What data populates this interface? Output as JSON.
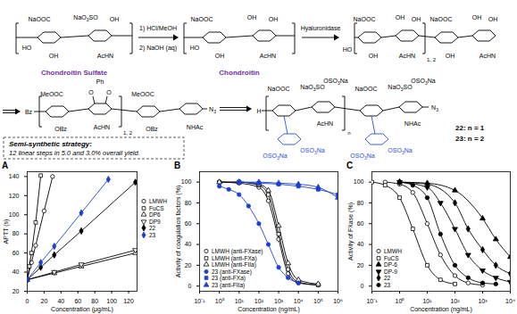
{
  "scheme": {
    "compounds": [
      {
        "name": "Chondroitin Sulfate",
        "color": "#7030a0",
        "labels": [
          "NaOOC",
          "NaO3SO",
          "OH",
          "HO",
          "OH",
          "AcHN"
        ]
      },
      {
        "name": "Chondroitin",
        "color": "#7030a0",
        "labels": [
          "NaOOC",
          "OH",
          "OH",
          "HO",
          "OH",
          "AcHN"
        ]
      },
      {
        "labels": [
          "NaOOC",
          "OH",
          "OH",
          "NaOOC",
          "OH",
          "OH",
          "HO",
          "OH",
          "AcHN",
          "1, 2",
          "OH",
          "AcHN"
        ]
      },
      {
        "labels": [
          "Ph",
          "O",
          "O",
          "MeOOC",
          "MeOOC",
          "Bz",
          "OBz",
          "AcHN",
          "1, 2",
          "OBz",
          "NHAc",
          "N3"
        ]
      },
      {
        "labels": [
          "NaOOC",
          "NaO3SO",
          "OSO3Na",
          "NaOOC",
          "NaO3SO",
          "OSO3Na",
          "H",
          "AcHN",
          "n",
          "NHAc",
          "N3",
          "OSO3Na",
          "OSO3Na",
          "OSO3Na",
          "OSO3Na"
        ],
        "names": [
          "22: n = 1",
          "23: n = 2"
        ]
      }
    ],
    "steps": [
      {
        "above": "1) HCl/MeOH",
        "below": "2) NaOH (aq)"
      },
      {
        "above": "Hyaluronidase"
      }
    ],
    "strategy": {
      "title": "Semi-synthetic strategy:",
      "text": "12 linear steps in 5.0 and 3.0% overall yield."
    }
  },
  "chart_data": [
    {
      "type": "line",
      "title": "A",
      "x_label": "Concentration (μg/mL)",
      "y_label": "APTT (s)",
      "xlim": [
        0,
        130
      ],
      "xticks": [
        0,
        20,
        40,
        60,
        80,
        100,
        120
      ],
      "ylim": [
        20,
        145
      ],
      "yticks": [
        20,
        40,
        60,
        80,
        100,
        120,
        140
      ],
      "legend": "right",
      "series": [
        {
          "name": "LMWH",
          "color": "#000000",
          "marker": "open-circle",
          "x": [
            0,
            5,
            10,
            20,
            30
          ],
          "values": [
            32,
            50,
            68,
            104,
            140
          ]
        },
        {
          "name": "FuCS",
          "color": "#000000",
          "marker": "open-square",
          "x": [
            0,
            2.5,
            5,
            10,
            16
          ],
          "values": [
            32,
            46,
            60,
            92,
            141
          ]
        },
        {
          "name": "DP6",
          "color": "#000000",
          "marker": "open-triangle",
          "x": [
            0,
            32,
            64,
            128
          ],
          "values": [
            32,
            39,
            46,
            60
          ]
        },
        {
          "name": "DP9",
          "color": "#000000",
          "marker": "open-triangle-down",
          "x": [
            0,
            32,
            64,
            128
          ],
          "values": [
            32,
            40,
            48,
            63
          ]
        },
        {
          "name": "22",
          "color": "#000000",
          "marker": "filled-diamond",
          "x": [
            0,
            16,
            32,
            64,
            128
          ],
          "values": [
            32,
            45,
            58,
            83,
            134
          ]
        },
        {
          "name": "23",
          "color": "#1c3fd1",
          "marker": "filled-diamond",
          "x": [
            0,
            16,
            32,
            64,
            96
          ],
          "values": [
            32,
            50,
            67,
            102,
            137
          ]
        }
      ]
    },
    {
      "type": "line",
      "title": "B",
      "x_label": "Concentration (ng/mL)",
      "y_label": "Activity of coagulation factors (%)",
      "log": "x",
      "xlim": [
        0.1,
        1000000
      ],
      "xticks": [
        {
          "value": 0.1,
          "label": "10⁻¹"
        },
        {
          "value": 1,
          "label": "10⁰"
        },
        {
          "value": 10,
          "label": "10¹"
        },
        {
          "value": 100,
          "label": "10²"
        },
        {
          "value": 1000,
          "label": "10³"
        },
        {
          "value": 10000,
          "label": "10⁴"
        },
        {
          "value": 100000,
          "label": "10⁵"
        },
        {
          "value": 1000000,
          "label": "10⁶"
        }
      ],
      "ylim": [
        -5,
        110
      ],
      "yticks": [
        0,
        20,
        40,
        60,
        80,
        100
      ],
      "legend": "bottom-left",
      "series": [
        {
          "name": "LMWH (anti-FXase)",
          "color": "#000000",
          "marker": "open-circle",
          "x": [
            1,
            10,
            100,
            300,
            1000,
            3000,
            10000,
            100000
          ],
          "values": [
            100,
            99,
            95,
            82,
            45,
            12,
            3,
            1
          ]
        },
        {
          "name": "LMWH (anti-FXa)",
          "color": "#000000",
          "marker": "open-square",
          "x": [
            1,
            10,
            100,
            300,
            1000,
            3000,
            10000,
            100000
          ],
          "values": [
            100,
            100,
            97,
            88,
            50,
            16,
            4,
            1
          ]
        },
        {
          "name": "LMWH (anti-FIIa)",
          "color": "#000000",
          "marker": "open-triangle",
          "x": [
            1,
            10,
            100,
            300,
            1000,
            3000,
            10000,
            100000
          ],
          "values": [
            100,
            100,
            98,
            92,
            58,
            22,
            6,
            2
          ]
        },
        {
          "name": "23 (anti-FXase)",
          "color": "#1c3fd1",
          "marker": "filled-circle",
          "x": [
            1,
            3,
            10,
            30,
            100,
            300,
            1000,
            3000,
            10000
          ],
          "values": [
            96,
            93,
            88,
            77,
            60,
            40,
            18,
            8,
            3
          ]
        },
        {
          "name": "23 (anti-FXa)",
          "color": "#1c3fd1",
          "marker": "filled-square",
          "x": [
            10,
            100,
            1000,
            10000,
            100000,
            1000000
          ],
          "values": [
            100,
            99,
            98,
            96,
            93,
            88
          ]
        },
        {
          "name": "23 (anti-FIIa)",
          "color": "#1c3fd1",
          "marker": "filled-triangle",
          "x": [
            10,
            100,
            1000,
            10000,
            100000,
            1000000
          ],
          "values": [
            100,
            100,
            99,
            98,
            95,
            85
          ]
        }
      ]
    },
    {
      "type": "line",
      "title": "C",
      "x_label": "Concentration (ng/mL)",
      "y_label": "Activity of FXase (%)",
      "log": "x",
      "xlim": [
        0.1,
        10000
      ],
      "xticks": [
        {
          "value": 0.1,
          "label": "10⁻¹"
        },
        {
          "value": 1,
          "label": "10⁰"
        },
        {
          "value": 10,
          "label": "10¹"
        },
        {
          "value": 100,
          "label": "10²"
        },
        {
          "value": 1000,
          "label": "10³"
        },
        {
          "value": 10000,
          "label": "10⁴"
        }
      ],
      "ylim": [
        -5,
        110
      ],
      "yticks": [
        0,
        20,
        40,
        60,
        80,
        100
      ],
      "legend": "bottom-left",
      "series": [
        {
          "name": "LMWH",
          "color": "#000000",
          "marker": "open-circle",
          "x": [
            0.3,
            1,
            3,
            10,
            30,
            100,
            300,
            1000
          ],
          "values": [
            100,
            98,
            90,
            60,
            30,
            10,
            3,
            1
          ]
        },
        {
          "name": "FuCS",
          "color": "#000000",
          "marker": "open-square",
          "x": [
            0.1,
            0.3,
            1,
            3,
            10,
            30,
            100
          ],
          "values": [
            100,
            97,
            85,
            55,
            20,
            6,
            2
          ]
        },
        {
          "name": "DP-6",
          "color": "#000000",
          "marker": "filled-triangle",
          "x": [
            1,
            10,
            100,
            1000,
            3000,
            10000
          ],
          "values": [
            100,
            99,
            92,
            65,
            45,
            28
          ]
        },
        {
          "name": "DP-9",
          "color": "#000000",
          "marker": "filled-triangle-down",
          "x": [
            1,
            10,
            30,
            100,
            300,
            1000,
            3000,
            10000
          ],
          "values": [
            100,
            95,
            80,
            55,
            30,
            15,
            8,
            4
          ]
        },
        {
          "name": "22",
          "color": "#000000",
          "marker": "filled-diamond",
          "x": [
            1,
            10,
            100,
            300,
            1000,
            3000,
            10000
          ],
          "values": [
            100,
            98,
            80,
            55,
            35,
            20,
            12
          ]
        },
        {
          "name": "23",
          "color": "#000000",
          "marker": "filled-circle",
          "x": [
            1,
            3,
            10,
            30,
            100,
            300,
            1000,
            3000
          ],
          "values": [
            100,
            97,
            85,
            50,
            20,
            8,
            3,
            2
          ]
        }
      ]
    }
  ]
}
